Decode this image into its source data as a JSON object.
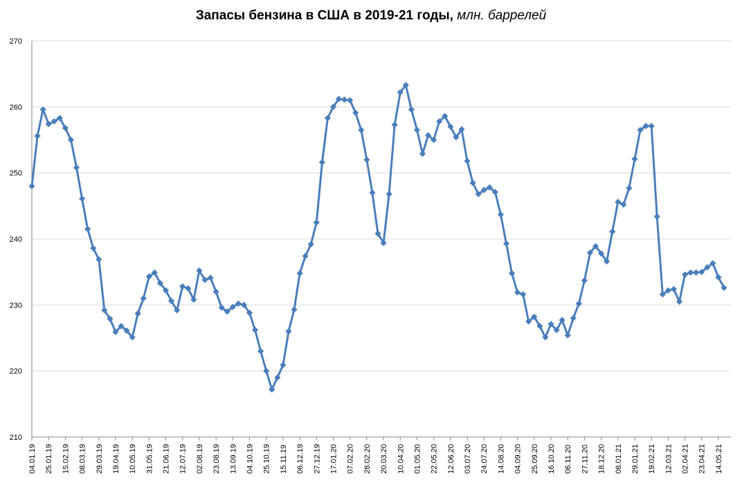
{
  "chart_data": {
    "type": "line",
    "title": "Запасы бензина в США в 2019-21 годы,",
    "title_units": "млн. баррелей",
    "ylim": [
      210,
      270
    ],
    "yticks": [
      210,
      220,
      230,
      240,
      250,
      260,
      270
    ],
    "grid": true,
    "series_color": "#4a7ebb",
    "xtick_labels": [
      "04.01.19",
      "25.01.19",
      "15.02.19",
      "08.03.19",
      "29.03.19",
      "19.04.19",
      "10.05.19",
      "31.05.19",
      "21.06.19",
      "12.07.19",
      "02.08.19",
      "23.08.19",
      "13.09.19",
      "04.10.19",
      "25.10.19",
      "15.11.19",
      "06.12.19",
      "27.12.19",
      "17.01.20",
      "07.02.20",
      "28.02.20",
      "20.03.20",
      "10.04.20",
      "01.05.20",
      "22.05.20",
      "12.06.20",
      "03.07.20",
      "24.07.20",
      "14.08.20",
      "04.09.20",
      "25.09.20",
      "16.10.20",
      "06.11.20",
      "27.11.20",
      "18.12.20",
      "08.01.21",
      "29.01.21",
      "19.02.21",
      "12.03.21",
      "02.04.21",
      "23.04.21",
      "14.05.21"
    ],
    "values": [
      248.0,
      255.6,
      259.6,
      257.4,
      257.8,
      258.3,
      256.8,
      255.0,
      250.8,
      246.1,
      241.5,
      238.6,
      236.9,
      229.2,
      227.9,
      225.9,
      226.8,
      226.1,
      225.1,
      228.7,
      231.0,
      234.3,
      234.9,
      233.3,
      232.2,
      230.6,
      229.2,
      232.8,
      232.5,
      230.8,
      235.2,
      233.8,
      234.1,
      232.0,
      229.6,
      229.0,
      229.7,
      230.2,
      230.0,
      228.8,
      226.2,
      223.0,
      220.0,
      217.2,
      219.0,
      220.9,
      226.0,
      229.3,
      234.8,
      237.4,
      239.2,
      242.5,
      251.6,
      258.3,
      260.0,
      261.2,
      261.1,
      261.0,
      259.1,
      256.5,
      252.0,
      247.0,
      240.8,
      239.4,
      246.8,
      257.3,
      262.2,
      263.3,
      259.6,
      256.5,
      252.9,
      255.7,
      255.0,
      257.8,
      258.6,
      257.0,
      255.4,
      256.6,
      251.8,
      248.5,
      246.8,
      247.4,
      247.8,
      247.1,
      243.7,
      239.3,
      234.8,
      231.9,
      231.6,
      227.5,
      228.2,
      226.8,
      225.1,
      227.1,
      226.2,
      227.7,
      225.4,
      228.0,
      230.2,
      233.7,
      237.9,
      238.9,
      237.8,
      236.6,
      241.1,
      245.6,
      245.2,
      247.7,
      252.1,
      256.5,
      257.1,
      257.1,
      243.4,
      231.6,
      232.2,
      232.4,
      230.5,
      234.6,
      234.9,
      234.9,
      235.0,
      235.7,
      236.3,
      234.2,
      232.6
    ]
  }
}
